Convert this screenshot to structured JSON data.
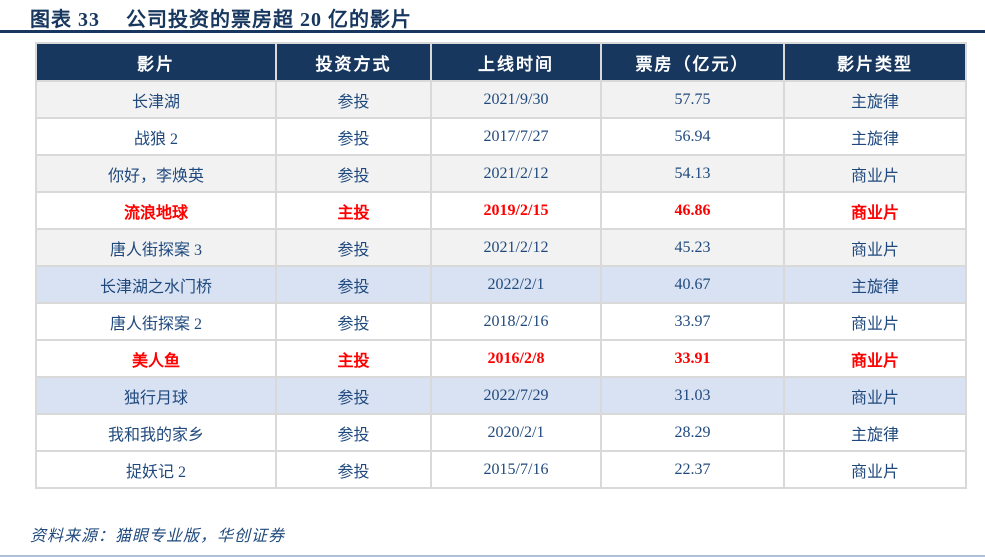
{
  "figure": {
    "label": "图表 33",
    "title": "公司投资的票房超 20 亿的影片"
  },
  "table": {
    "headers": [
      "影片",
      "投资方式",
      "上线时间",
      "票房（亿元）",
      "影片类型"
    ],
    "rows": [
      {
        "film": "长津湖",
        "investment": "参投",
        "release": "2021/9/30",
        "boxoffice": "57.75",
        "type": "主旋律",
        "bg": "gray",
        "emphasis": false
      },
      {
        "film": "战狼 2",
        "investment": "参投",
        "release": "2017/7/27",
        "boxoffice": "56.94",
        "type": "主旋律",
        "bg": "white",
        "emphasis": false
      },
      {
        "film": "你好，李焕英",
        "investment": "参投",
        "release": "2021/2/12",
        "boxoffice": "54.13",
        "type": "商业片",
        "bg": "gray",
        "emphasis": false
      },
      {
        "film": "流浪地球",
        "investment": "主投",
        "release": "2019/2/15",
        "boxoffice": "46.86",
        "type": "商业片",
        "bg": "white",
        "emphasis": true
      },
      {
        "film": "唐人街探案 3",
        "investment": "参投",
        "release": "2021/2/12",
        "boxoffice": "45.23",
        "type": "商业片",
        "bg": "gray",
        "emphasis": false
      },
      {
        "film": "长津湖之水门桥",
        "investment": "参投",
        "release": "2022/2/1",
        "boxoffice": "40.67",
        "type": "主旋律",
        "bg": "blue",
        "emphasis": false
      },
      {
        "film": "唐人街探案 2",
        "investment": "参投",
        "release": "2018/2/16",
        "boxoffice": "33.97",
        "type": "商业片",
        "bg": "white",
        "emphasis": false
      },
      {
        "film": "美人鱼",
        "investment": "主投",
        "release": "2016/2/8",
        "boxoffice": "33.91",
        "type": "商业片",
        "bg": "white",
        "emphasis": true
      },
      {
        "film": "独行月球",
        "investment": "参投",
        "release": "2022/7/29",
        "boxoffice": "31.03",
        "type": "商业片",
        "bg": "blue",
        "emphasis": false
      },
      {
        "film": "我和我的家乡",
        "investment": "参投",
        "release": "2020/2/1",
        "boxoffice": "28.29",
        "type": "主旋律",
        "bg": "white",
        "emphasis": false
      },
      {
        "film": "捉妖记 2",
        "investment": "参投",
        "release": "2015/7/16",
        "boxoffice": "22.37",
        "type": "商业片",
        "bg": "white",
        "emphasis": false
      }
    ]
  },
  "footer": {
    "source_note": "资料来源：猫眼专业版，华创证券"
  },
  "colors": {
    "navy": "#17375E",
    "cell_text_blue": "#1F497D",
    "emphasis_red": "#FF0000",
    "row_gray": "#F2F2F2",
    "row_blue": "#D9E2F3",
    "grid_gray": "#D9D9D9"
  }
}
